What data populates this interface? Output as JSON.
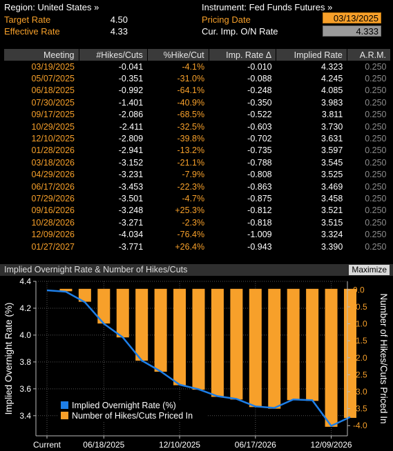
{
  "header": {
    "region_label": "Region: United States »",
    "target_rate_label": "Target Rate",
    "target_rate_value": "4.50",
    "effective_rate_label": "Effective Rate",
    "effective_rate_value": "4.33",
    "instrument_label": "Instrument: Fed Funds Futures »",
    "pricing_date_label": "Pricing Date",
    "pricing_date_value": "03/13/2025",
    "cur_rate_label": "Cur. Imp. O/N Rate",
    "cur_rate_value": "4.333"
  },
  "table": {
    "columns": [
      "Meeting",
      "#Hikes/Cuts",
      "%Hike/Cut",
      "Imp. Rate Δ",
      "Implied Rate",
      "A.R.M."
    ],
    "rows": [
      [
        "03/19/2025",
        "-0.041",
        "-4.1%",
        "-0.010",
        "4.323",
        "0.250"
      ],
      [
        "05/07/2025",
        "-0.351",
        "-31.0%",
        "-0.088",
        "4.245",
        "0.250"
      ],
      [
        "06/18/2025",
        "-0.992",
        "-64.1%",
        "-0.248",
        "4.085",
        "0.250"
      ],
      [
        "07/30/2025",
        "-1.401",
        "-40.9%",
        "-0.350",
        "3.983",
        "0.250"
      ],
      [
        "09/17/2025",
        "-2.086",
        "-68.5%",
        "-0.522",
        "3.811",
        "0.250"
      ],
      [
        "10/29/2025",
        "-2.411",
        "-32.5%",
        "-0.603",
        "3.730",
        "0.250"
      ],
      [
        "12/10/2025",
        "-2.809",
        "-39.8%",
        "-0.702",
        "3.631",
        "0.250"
      ],
      [
        "01/28/2026",
        "-2.941",
        "-13.2%",
        "-0.735",
        "3.597",
        "0.250"
      ],
      [
        "03/18/2026",
        "-3.152",
        "-21.1%",
        "-0.788",
        "3.545",
        "0.250"
      ],
      [
        "04/29/2026",
        "-3.231",
        "-7.9%",
        "-0.808",
        "3.525",
        "0.250"
      ],
      [
        "06/17/2026",
        "-3.453",
        "-22.3%",
        "-0.863",
        "3.469",
        "0.250"
      ],
      [
        "07/29/2026",
        "-3.501",
        "-4.7%",
        "-0.875",
        "3.458",
        "0.250"
      ],
      [
        "09/16/2026",
        "-3.248",
        "+25.3%",
        "-0.812",
        "3.521",
        "0.250"
      ],
      [
        "10/28/2026",
        "-3.271",
        "-2.3%",
        "-0.818",
        "3.515",
        "0.250"
      ],
      [
        "12/09/2026",
        "-4.034",
        "-76.4%",
        "-1.009",
        "3.324",
        "0.250"
      ],
      [
        "01/27/2027",
        "-3.771",
        "+26.4%",
        "-0.943",
        "3.390",
        "0.250"
      ]
    ]
  },
  "chart_panel": {
    "title": "Implied Overnight Rate & Number of Hikes/Cuts",
    "maximize_label": "Maximize"
  },
  "chart_data": {
    "type": "bar",
    "title": "Implied Overnight Rate & Number of Hikes/Cuts",
    "categories": [
      "Current",
      "03/19/2025",
      "05/07/2025",
      "06/18/2025",
      "07/30/2025",
      "09/17/2025",
      "10/29/2025",
      "12/10/2025",
      "01/28/2026",
      "03/18/2026",
      "04/29/2026",
      "06/17/2026",
      "07/29/2026",
      "09/16/2026",
      "10/28/2026",
      "12/09/2026",
      "01/27/2027"
    ],
    "x_tick_labels": [
      "Current",
      "06/18/2025",
      "12/10/2025",
      "06/17/2026",
      "12/09/2026"
    ],
    "series": [
      {
        "name": "Implied Overnight Rate (%)",
        "kind": "line",
        "axis": "left",
        "values": [
          4.333,
          4.323,
          4.245,
          4.085,
          3.983,
          3.811,
          3.73,
          3.631,
          3.597,
          3.545,
          3.525,
          3.469,
          3.458,
          3.521,
          3.515,
          3.324,
          3.39
        ]
      },
      {
        "name": "Number of Hikes/Cuts Priced In",
        "kind": "bar",
        "axis": "right",
        "values": [
          null,
          -0.041,
          -0.351,
          -0.992,
          -1.401,
          -2.086,
          -2.411,
          -2.809,
          -2.941,
          -3.152,
          -3.231,
          -3.453,
          -3.501,
          -3.248,
          -3.271,
          -4.034,
          -3.771
        ]
      }
    ],
    "ylabel": "Implied Overnight Rate (%)",
    "ylim": [
      3.25,
      4.4
    ],
    "yticks": [
      "3.4",
      "3.6",
      "3.8",
      "4.0",
      "4.2",
      "4.4"
    ],
    "y2label": "Number of Hikes/Cuts Priced In",
    "y2lim": [
      -4.3,
      0.25
    ],
    "y2ticks": [
      "0.0",
      "-0.5",
      "-1.0",
      "-1.5",
      "-2.0",
      "-2.5",
      "-3.0",
      "-3.5",
      "-4.0"
    ],
    "legend_placement": "bottom-left",
    "grid": true,
    "colors": {
      "line": "#1e7fe8",
      "bar": "#f7a02a",
      "grid": "#555555",
      "axis_text": "#f7a02a"
    }
  }
}
